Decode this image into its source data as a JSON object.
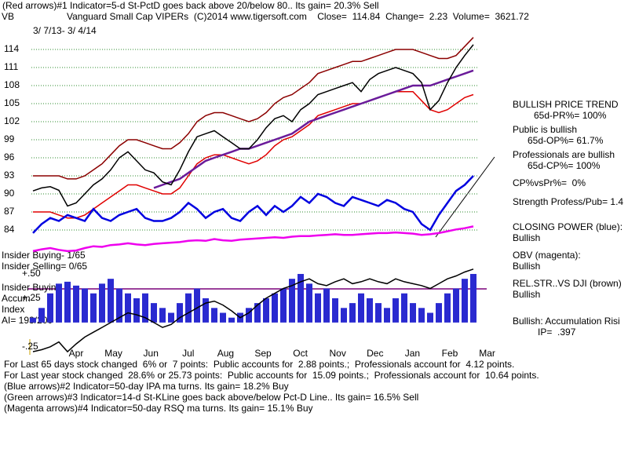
{
  "header": {
    "signal": "(Red arrows)#1 Indicator=5-d St-PctD goes back above 20/below 80.. Its gain= 20.3% Sell",
    "symbol": "VB",
    "description": "Vanguard Small Cap VIPERs  (C)2014 www.tigersoft.com    Close=  114.84  Change=  2.23  Volume=  3621.72",
    "date_range": "3/ 7/13- 3/ 4/14"
  },
  "side_panel": [
    "BULLISH PRICE TREND",
    "65d-PR%= 100%",
    "Public is bullish",
    "65d-OP%= 61.7%",
    "Professionals are bullish",
    "65d-CP%= 100%",
    "CP%vsPr%=  0%",
    "Strength Profess/Pub= 1.4",
    "CLOSING POWER (blue):",
    "Bullish",
    "OBV (magenta):",
    "Bullish",
    "REL.STR..VS DJI (brown)",
    "Bullish",
    "Bullish: Accumulation Risi",
    "IP=  .397"
  ],
  "insider": [
    "Insider Buying- 1/65",
    "Insider Selling= 0/65",
    "Insider Buying",
    "Accum",
    "Index",
    "AI= 193/200"
  ],
  "footer": [
    "For Last 65 days stock changed  6% or  7 points:  Public accounts for  2.88 points.;  Professionals account for  4.12 points.",
    "For Last year stock changed  28.6% or 25.73 points:  Public accounts for  15.09 points.;  Professionals account for  10.64 points.",
    "(Blue arrows)#2 Indicator=50-day IPA ma turns. Its gain= 18.2% Buy",
    "(Green arrows)#3 Indicator=14-d St-KLine goes back above/below Pct-D Line.. Its gain= 16.5% Sell",
    "(Magenta arrows)#4 Indicator=50-day RSQ ma turns. Its gain= 15.1% Buy"
  ],
  "chart_data": [
    {
      "type": "line",
      "ylim": [
        80,
        117
      ],
      "yticks": [
        84,
        87,
        90,
        93,
        96,
        99,
        102,
        105,
        108,
        111,
        114
      ],
      "grid": true,
      "series": [
        {
          "color": "#8b0000",
          "values": [
            93,
            93,
            93,
            93,
            92.5,
            92.5,
            93,
            94,
            95,
            96.5,
            98,
            99,
            99,
            98.5,
            98,
            97.5,
            97.5,
            98.5,
            100,
            102,
            103,
            103.5,
            103.5,
            103,
            102.5,
            102,
            102.5,
            103.5,
            105,
            106,
            106.5,
            107.5,
            108.5,
            110,
            110.5,
            111,
            111.5,
            112,
            112,
            112.5,
            113,
            113.5,
            114,
            114,
            114,
            113.5,
            113,
            112.5,
            112.5,
            113,
            114.5,
            116
          ]
        },
        {
          "color": "#e00000",
          "values": [
            87,
            87,
            87,
            86.5,
            86,
            86,
            86.5,
            87.5,
            88.5,
            89.5,
            90.5,
            91.5,
            91.5,
            91,
            90.5,
            90,
            90,
            91,
            93,
            95,
            96,
            96.5,
            96.5,
            96,
            95.5,
            95,
            95.5,
            96.5,
            98,
            99,
            99.5,
            100.5,
            101.5,
            103,
            103.5,
            104,
            104.5,
            105,
            105,
            105.5,
            106,
            106.5,
            107,
            107,
            107,
            105.5,
            104,
            103.5,
            104,
            105,
            106,
            106.5
          ]
        },
        {
          "color": "#6a1b9a",
          "values": [
            null,
            null,
            null,
            null,
            null,
            null,
            null,
            null,
            null,
            null,
            null,
            null,
            null,
            null,
            91,
            91.5,
            92,
            92.5,
            93.5,
            94.5,
            95.5,
            96,
            96.5,
            97,
            97.5,
            97.5,
            98,
            98.5,
            99,
            99.5,
            100,
            101,
            102,
            102.5,
            103,
            103.5,
            104,
            104.5,
            105,
            105.5,
            106,
            106.5,
            107,
            107.5,
            108,
            108,
            108,
            108.5,
            109,
            109.5,
            110,
            110.5
          ]
        },
        {
          "color": "#ee00ee",
          "values": [
            80.5,
            80.8,
            81,
            80.7,
            80.5,
            80.6,
            81,
            81.3,
            81.2,
            81.5,
            81.6,
            81.8,
            81.6,
            81.5,
            81.7,
            81.8,
            81.9,
            82,
            82.2,
            82.3,
            82.2,
            82.5,
            82.3,
            82.2,
            82.4,
            82.5,
            82.6,
            82.7,
            82.8,
            82.7,
            82.9,
            83,
            83,
            83.1,
            83.2,
            83.3,
            83.2,
            83.2,
            83.3,
            83.4,
            83.5,
            83.5,
            83.6,
            83.5,
            83.4,
            83.2,
            83.3,
            83.5,
            83.8,
            84.1,
            84.3,
            84.6
          ]
        },
        {
          "color": "#0000e0",
          "values": [
            83.5,
            85,
            86,
            85.5,
            86.5,
            86,
            85.5,
            87.5,
            86,
            85.5,
            86.5,
            87,
            87.5,
            86,
            85.5,
            85.5,
            86,
            87,
            88.5,
            87.5,
            86,
            87,
            87.5,
            86,
            85.5,
            87,
            88,
            86.5,
            88,
            87,
            88,
            89.5,
            88.5,
            90,
            89.5,
            88.5,
            88,
            89.5,
            89,
            88.5,
            88,
            89,
            88.5,
            87.5,
            87,
            85,
            84,
            86.5,
            88.5,
            90.5,
            91.5,
            93
          ]
        },
        {
          "color": "#000000",
          "values": [
            90.5,
            91,
            91.2,
            90.6,
            88,
            88.5,
            90,
            91.5,
            92.5,
            94,
            96,
            97,
            95.5,
            94,
            93.5,
            92,
            91.5,
            94,
            97,
            99.5,
            100,
            100.5,
            99.5,
            98.5,
            97.5,
            97.5,
            99,
            101,
            102.5,
            103,
            102,
            104,
            105,
            106.5,
            107,
            107.5,
            108,
            108.5,
            107,
            109,
            110,
            110.5,
            111,
            110.5,
            110,
            108.5,
            104,
            105.5,
            108.5,
            111,
            113,
            114.8
          ]
        }
      ]
    },
    {
      "type": "bar",
      "ylim": [
        -0.3,
        0.6
      ],
      "yticks": [
        {
          "value": 0.5,
          "label": "+.50"
        },
        {
          "value": 0.25,
          "label": "+.25"
        },
        {
          "value": -0.25,
          "label": "-.25"
        }
      ],
      "grid": false,
      "xtick_labels": [
        "Apr",
        "May",
        "Jun",
        "Jul",
        "Aug",
        "Sep",
        "Oct",
        "Nov",
        "Dec",
        "Jan",
        "Feb",
        "Mar"
      ],
      "series": [
        {
          "color": "#2a2ad0",
          "values": [
            0.05,
            0.15,
            0.3,
            0.4,
            0.42,
            0.38,
            0.35,
            0.3,
            0.4,
            0.45,
            0.35,
            0.3,
            0.25,
            0.3,
            0.2,
            0.15,
            0.1,
            0.2,
            0.3,
            0.35,
            0.25,
            0.15,
            0.1,
            0.05,
            0.1,
            0.15,
            0.2,
            0.25,
            0.3,
            0.35,
            0.45,
            0.5,
            0.4,
            0.3,
            0.35,
            0.25,
            0.15,
            0.2,
            0.3,
            0.25,
            0.2,
            0.15,
            0.25,
            0.3,
            0.2,
            0.15,
            0.1,
            0.2,
            0.3,
            0.35,
            0.45,
            0.5
          ]
        },
        {
          "type": "line",
          "color": "#000000",
          "values": [
            -0.3,
            -0.28,
            -0.25,
            -0.2,
            -0.3,
            -0.22,
            -0.15,
            -0.1,
            -0.05,
            0,
            0.05,
            0.1,
            0.08,
            0.05,
            0,
            -0.05,
            -0.02,
            0.05,
            0.1,
            0.15,
            0.2,
            0.22,
            0.18,
            0.12,
            0.05,
            0.1,
            0.18,
            0.25,
            0.3,
            0.35,
            0.38,
            0.42,
            0.45,
            0.4,
            0.38,
            0.42,
            0.45,
            0.4,
            0.42,
            0.45,
            0.42,
            0.4,
            0.45,
            0.42,
            0.4,
            0.38,
            0.35,
            0.4,
            0.45,
            0.48,
            0.52,
            0.55
          ]
        }
      ]
    }
  ]
}
